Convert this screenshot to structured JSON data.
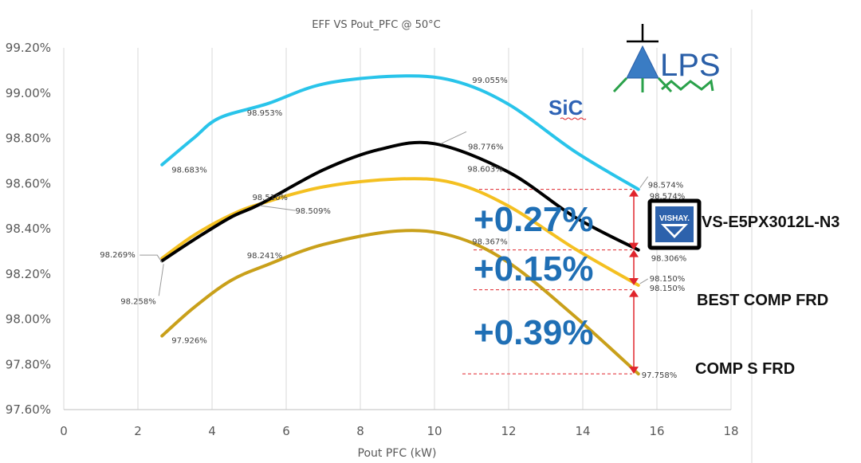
{
  "chart_data": {
    "type": "line",
    "title": "EFF VS Pout_PFC @ 50°C",
    "xlabel": "Pout PFC (kW)",
    "ylabel": "",
    "xlim": [
      0,
      18
    ],
    "ylim": [
      97.6,
      99.2
    ],
    "x_ticks": [
      "0",
      "2",
      "4",
      "6",
      "8",
      "10",
      "12",
      "14",
      "16",
      "18"
    ],
    "y_ticks": [
      "97.60%",
      "97.80%",
      "98.00%",
      "98.20%",
      "98.40%",
      "98.60%",
      "98.80%",
      "99.00%",
      "99.20%"
    ],
    "grid": "vertical",
    "series": [
      {
        "key": "sic",
        "name": "SiC",
        "color": "#29c4ea",
        "points": [
          [
            2.65,
            98.683
          ],
          [
            3.5,
            98.8
          ],
          [
            4.2,
            98.89
          ],
          [
            5.5,
            98.953
          ],
          [
            7.0,
            99.04
          ],
          [
            9.0,
            99.075
          ],
          [
            10.5,
            99.055
          ],
          [
            12.0,
            98.95
          ],
          [
            13.8,
            98.74
          ],
          [
            15.5,
            98.574
          ]
        ],
        "labels": [
          {
            "text": "98.683%",
            "x": 2.65,
            "y": 98.683
          },
          {
            "text": "98.953%",
            "x": 5.5,
            "y": 98.953
          },
          {
            "text": "99.055%",
            "x": 10.5,
            "y": 99.055
          },
          {
            "text": "98.574%",
            "x": 15.5,
            "y": 98.574
          }
        ]
      },
      {
        "key": "vishay",
        "name": "VS-E5PX3012L-N3",
        "color": "#000000",
        "points": [
          [
            2.65,
            98.258
          ],
          [
            3.5,
            98.35
          ],
          [
            4.5,
            98.45
          ],
          [
            5.3,
            98.509
          ],
          [
            7.0,
            98.66
          ],
          [
            8.5,
            98.75
          ],
          [
            10.0,
            98.776
          ],
          [
            12.0,
            98.65
          ],
          [
            13.8,
            98.45
          ],
          [
            15.5,
            98.306
          ]
        ],
        "labels": [
          {
            "text": "98.258%",
            "x": 2.65,
            "y": 98.258
          },
          {
            "text": "98.509%",
            "x": 5.3,
            "y": 98.509
          },
          {
            "text": "98.776%",
            "x": 10.0,
            "y": 98.776
          },
          {
            "text": "98.306%",
            "x": 15.5,
            "y": 98.306
          }
        ]
      },
      {
        "key": "best",
        "name": "BEST COMP FRD",
        "color": "#f4c021",
        "points": [
          [
            2.65,
            98.269
          ],
          [
            3.5,
            98.37
          ],
          [
            4.5,
            98.46
          ],
          [
            5.3,
            98.51
          ],
          [
            7.0,
            98.585
          ],
          [
            9.0,
            98.62
          ],
          [
            10.5,
            98.603
          ],
          [
            12.0,
            98.5
          ],
          [
            13.8,
            98.31
          ],
          [
            15.5,
            98.15
          ]
        ],
        "labels": [
          {
            "text": "98.269%",
            "x": 2.65,
            "y": 98.269
          },
          {
            "text": "98.510%",
            "x": 5.3,
            "y": 98.51
          },
          {
            "text": "98.603%",
            "x": 10.5,
            "y": 98.603
          },
          {
            "text": "98.150%",
            "x": 15.5,
            "y": 98.15
          }
        ]
      },
      {
        "key": "comps",
        "name": "COMP S FRD",
        "color": "#c9a01a",
        "points": [
          [
            2.65,
            97.926
          ],
          [
            3.5,
            98.05
          ],
          [
            4.5,
            98.17
          ],
          [
            5.5,
            98.241
          ],
          [
            7.0,
            98.33
          ],
          [
            9.0,
            98.39
          ],
          [
            10.5,
            98.367
          ],
          [
            12.0,
            98.25
          ],
          [
            13.8,
            98.01
          ],
          [
            15.5,
            97.758
          ]
        ],
        "labels": [
          {
            "text": "97.926%",
            "x": 2.65,
            "y": 97.926
          },
          {
            "text": "98.241%",
            "x": 5.5,
            "y": 98.241
          },
          {
            "text": "98.367%",
            "x": 10.5,
            "y": 98.367
          },
          {
            "text": "97.758%",
            "x": 15.5,
            "y": 97.758
          }
        ]
      }
    ],
    "extra_label": {
      "text": "98.150%",
      "x": 15.5,
      "y": 98.15
    },
    "sic_extra_label": {
      "text": "98.574%",
      "x": 15.5,
      "y": 98.574
    },
    "annotations": {
      "delta_1": "+0.27%",
      "delta_2": "+0.15%",
      "delta_3": "+0.39%",
      "sic_label": "SiC",
      "vishay_part": "VS-E5PX3012L-N3",
      "best_comp": "BEST COMP FRD",
      "comp_s": "COMP S FRD",
      "vishay_logo_text": "VISHAY.",
      "lps_logo": "LPS"
    },
    "arrow_color": "#e0252c"
  }
}
